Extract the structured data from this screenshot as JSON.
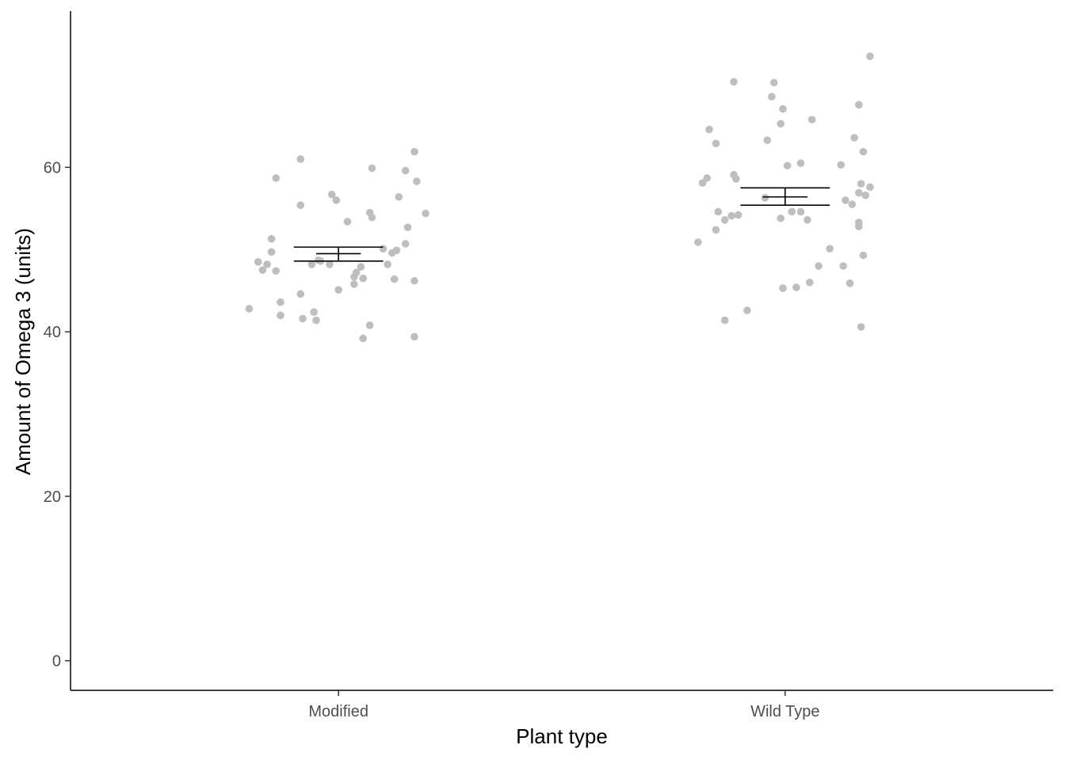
{
  "chart_data": {
    "type": "scatter",
    "title": "",
    "xlabel": "Plant type",
    "ylabel": "Amount of Omega 3 (units)",
    "categories": [
      "Modified",
      "Wild Type"
    ],
    "ylim": [
      -3.6,
      79.0
    ],
    "yticks": [
      0,
      20,
      40,
      60
    ],
    "grid": false,
    "legend": "none",
    "point_color": "#bebebe",
    "summary_color": "#000000",
    "series": [
      {
        "category": "Modified",
        "mean": 49.5,
        "ci": [
          48.6,
          50.3
        ],
        "points": [
          {
            "jitter": -0.2,
            "y": 42.8
          },
          {
            "jitter": -0.18,
            "y": 48.5
          },
          {
            "jitter": -0.17,
            "y": 47.5
          },
          {
            "jitter": -0.16,
            "y": 48.2
          },
          {
            "jitter": -0.15,
            "y": 49.7
          },
          {
            "jitter": -0.15,
            "y": 51.3
          },
          {
            "jitter": -0.14,
            "y": 47.4
          },
          {
            "jitter": -0.14,
            "y": 58.7
          },
          {
            "jitter": -0.13,
            "y": 43.6
          },
          {
            "jitter": -0.13,
            "y": 42.0
          },
          {
            "jitter": -0.085,
            "y": 61.0
          },
          {
            "jitter": -0.085,
            "y": 55.4
          },
          {
            "jitter": -0.085,
            "y": 44.6
          },
          {
            "jitter": -0.08,
            "y": 41.6
          },
          {
            "jitter": -0.06,
            "y": 48.2
          },
          {
            "jitter": -0.055,
            "y": 42.4
          },
          {
            "jitter": -0.05,
            "y": 41.4
          },
          {
            "jitter": -0.045,
            "y": 48.7
          },
          {
            "jitter": -0.04,
            "y": 48.6
          },
          {
            "jitter": -0.02,
            "y": 48.2
          },
          {
            "jitter": -0.015,
            "y": 56.7
          },
          {
            "jitter": -0.005,
            "y": 56.0
          },
          {
            "jitter": 0.0,
            "y": 45.1
          },
          {
            "jitter": 0.02,
            "y": 53.4
          },
          {
            "jitter": 0.035,
            "y": 46.7
          },
          {
            "jitter": 0.035,
            "y": 45.8
          },
          {
            "jitter": 0.04,
            "y": 47.2
          },
          {
            "jitter": 0.05,
            "y": 47.9
          },
          {
            "jitter": 0.055,
            "y": 46.5
          },
          {
            "jitter": 0.055,
            "y": 39.2
          },
          {
            "jitter": 0.07,
            "y": 40.8
          },
          {
            "jitter": 0.07,
            "y": 54.5
          },
          {
            "jitter": 0.075,
            "y": 53.9
          },
          {
            "jitter": 0.075,
            "y": 59.9
          },
          {
            "jitter": 0.1,
            "y": 50.1
          },
          {
            "jitter": 0.11,
            "y": 48.2
          },
          {
            "jitter": 0.12,
            "y": 49.6
          },
          {
            "jitter": 0.125,
            "y": 46.4
          },
          {
            "jitter": 0.13,
            "y": 49.9
          },
          {
            "jitter": 0.135,
            "y": 56.4
          },
          {
            "jitter": 0.15,
            "y": 50.7
          },
          {
            "jitter": 0.15,
            "y": 59.6
          },
          {
            "jitter": 0.155,
            "y": 52.7
          },
          {
            "jitter": 0.17,
            "y": 46.2
          },
          {
            "jitter": 0.17,
            "y": 39.4
          },
          {
            "jitter": 0.17,
            "y": 61.9
          },
          {
            "jitter": 0.175,
            "y": 58.3
          },
          {
            "jitter": 0.195,
            "y": 54.4
          }
        ]
      },
      {
        "category": "Wild Type",
        "mean": 56.4,
        "ci": [
          55.4,
          57.5
        ],
        "points": [
          {
            "jitter": -0.195,
            "y": 50.9
          },
          {
            "jitter": -0.185,
            "y": 58.1
          },
          {
            "jitter": -0.175,
            "y": 58.7
          },
          {
            "jitter": -0.17,
            "y": 64.6
          },
          {
            "jitter": -0.155,
            "y": 62.9
          },
          {
            "jitter": -0.155,
            "y": 52.4
          },
          {
            "jitter": -0.15,
            "y": 54.6
          },
          {
            "jitter": -0.135,
            "y": 53.6
          },
          {
            "jitter": -0.135,
            "y": 41.4
          },
          {
            "jitter": -0.12,
            "y": 54.1
          },
          {
            "jitter": -0.115,
            "y": 70.4
          },
          {
            "jitter": -0.115,
            "y": 59.1
          },
          {
            "jitter": -0.11,
            "y": 58.6
          },
          {
            "jitter": -0.105,
            "y": 54.2
          },
          {
            "jitter": -0.085,
            "y": 42.6
          },
          {
            "jitter": -0.04,
            "y": 63.3
          },
          {
            "jitter": -0.045,
            "y": 56.3
          },
          {
            "jitter": -0.03,
            "y": 68.6
          },
          {
            "jitter": -0.025,
            "y": 70.3
          },
          {
            "jitter": -0.01,
            "y": 65.3
          },
          {
            "jitter": -0.01,
            "y": 53.8
          },
          {
            "jitter": -0.005,
            "y": 67.1
          },
          {
            "jitter": -0.005,
            "y": 45.3
          },
          {
            "jitter": 0.005,
            "y": 60.2
          },
          {
            "jitter": 0.015,
            "y": 54.6
          },
          {
            "jitter": 0.025,
            "y": 45.4
          },
          {
            "jitter": 0.035,
            "y": 60.5
          },
          {
            "jitter": 0.035,
            "y": 54.6
          },
          {
            "jitter": 0.05,
            "y": 53.6
          },
          {
            "jitter": 0.055,
            "y": 46.0
          },
          {
            "jitter": 0.06,
            "y": 65.8
          },
          {
            "jitter": 0.075,
            "y": 48.0
          },
          {
            "jitter": 0.1,
            "y": 50.1
          },
          {
            "jitter": 0.125,
            "y": 60.3
          },
          {
            "jitter": 0.13,
            "y": 48.0
          },
          {
            "jitter": 0.135,
            "y": 56.0
          },
          {
            "jitter": 0.145,
            "y": 45.9
          },
          {
            "jitter": 0.15,
            "y": 55.5
          },
          {
            "jitter": 0.155,
            "y": 63.6
          },
          {
            "jitter": 0.165,
            "y": 53.3
          },
          {
            "jitter": 0.165,
            "y": 52.8
          },
          {
            "jitter": 0.165,
            "y": 56.9
          },
          {
            "jitter": 0.165,
            "y": 67.6
          },
          {
            "jitter": 0.17,
            "y": 58.0
          },
          {
            "jitter": 0.17,
            "y": 40.6
          },
          {
            "jitter": 0.175,
            "y": 49.3
          },
          {
            "jitter": 0.175,
            "y": 61.9
          },
          {
            "jitter": 0.18,
            "y": 56.6
          },
          {
            "jitter": 0.19,
            "y": 57.6
          },
          {
            "jitter": 0.19,
            "y": 73.5
          }
        ]
      }
    ]
  }
}
